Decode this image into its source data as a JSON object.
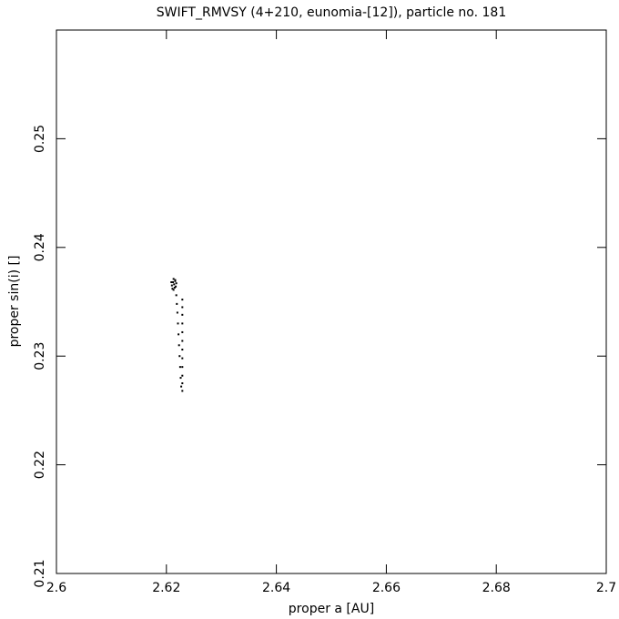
{
  "chart_data": {
    "type": "scatter",
    "title": "SWIFT_RMVSY (4+210, eunomia-[12]), particle no. 181",
    "xlabel": "proper a [AU]",
    "ylabel": "proper sin(i) []",
    "color": "#000000",
    "x": [
      2.6212,
      2.6214,
      2.6216,
      2.621,
      2.6218,
      2.6213,
      2.6215,
      2.6211,
      2.6217,
      2.6209,
      2.6216,
      2.6213,
      2.6218,
      2.6219,
      2.622,
      2.6221,
      2.6222,
      2.6223,
      2.6224,
      2.6225,
      2.6226,
      2.6227,
      2.6229,
      2.6229,
      2.6229,
      2.6229,
      2.6229,
      2.6229,
      2.6229,
      2.6229,
      2.6229,
      2.6229,
      2.6229,
      2.6229
    ],
    "y": [
      0.2368,
      0.2366,
      0.2369,
      0.2365,
      0.2367,
      0.2371,
      0.2363,
      0.2362,
      0.2364,
      0.2368,
      0.237,
      0.2361,
      0.2356,
      0.2348,
      0.234,
      0.233,
      0.232,
      0.231,
      0.23,
      0.229,
      0.228,
      0.2272,
      0.2352,
      0.2345,
      0.2338,
      0.233,
      0.2322,
      0.2314,
      0.2306,
      0.2298,
      0.229,
      0.2282,
      0.2275,
      0.2268
    ],
    "xlim": [
      2.6,
      2.7
    ],
    "xticks": [
      2.6,
      2.62,
      2.64,
      2.66,
      2.68,
      2.7
    ],
    "ylim": [
      0.21,
      0.26
    ],
    "yticks": [
      0.21,
      0.22,
      0.23,
      0.24,
      0.25
    ]
  }
}
